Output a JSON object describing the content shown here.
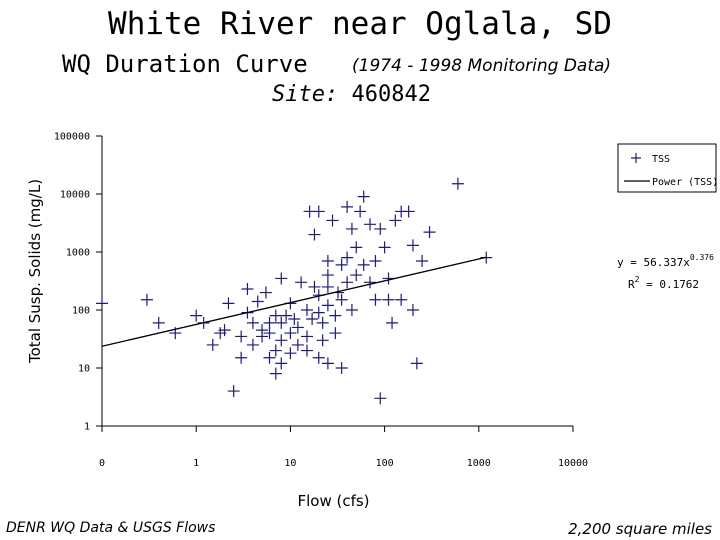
{
  "header": {
    "title": "White River near Oglala, SD",
    "subtitle": "WQ Duration Curve",
    "subtitle_note": "(1974 - 1998 Monitoring Data)",
    "site_label": "Site:",
    "site_id": "460842"
  },
  "footer": {
    "left": "DENR WQ Data & USGS Flows",
    "right": "2,200 square miles"
  },
  "colors": {
    "series": "#1a1a8c",
    "trendline": "#000000",
    "axis": "#000000"
  },
  "chart_data": {
    "type": "scatter",
    "xlabel": "Flow (cfs)",
    "ylabel": "Total Susp. Solids (mg/L)",
    "x_scale": "log",
    "y_scale": "log",
    "xlim": [
      0.1,
      10000
    ],
    "ylim": [
      1,
      100000
    ],
    "x_tick_labels": [
      "0",
      "1",
      "10",
      "100",
      "1000",
      "10000"
    ],
    "y_tick_labels": [
      "1",
      "10",
      "100",
      "1000",
      "10000",
      "100000"
    ],
    "grid": false,
    "legend": {
      "placement": "top-right",
      "entries": [
        "TSS",
        "Power (TSS)"
      ]
    },
    "series": [
      {
        "name": "TSS",
        "marker": "plus",
        "points": [
          [
            0.1,
            130
          ],
          [
            0.3,
            150
          ],
          [
            0.4,
            60
          ],
          [
            0.6,
            40
          ],
          [
            1.0,
            80
          ],
          [
            1.2,
            60
          ],
          [
            1.5,
            25
          ],
          [
            1.8,
            40
          ],
          [
            2.0,
            45
          ],
          [
            2.2,
            130
          ],
          [
            2.5,
            4
          ],
          [
            3.0,
            35
          ],
          [
            3.0,
            15
          ],
          [
            3.5,
            90
          ],
          [
            3.5,
            230
          ],
          [
            4.0,
            60
          ],
          [
            4.0,
            25
          ],
          [
            4.5,
            140
          ],
          [
            5.0,
            45
          ],
          [
            5.0,
            35
          ],
          [
            5.5,
            200
          ],
          [
            6.0,
            60
          ],
          [
            6.0,
            40
          ],
          [
            6.0,
            15
          ],
          [
            7.0,
            20
          ],
          [
            7.0,
            80
          ],
          [
            7.0,
            8
          ],
          [
            8.0,
            350
          ],
          [
            8.0,
            60
          ],
          [
            8.0,
            30
          ],
          [
            8.0,
            12
          ],
          [
            9.0,
            80
          ],
          [
            10.0,
            130
          ],
          [
            10.0,
            40
          ],
          [
            10.0,
            18
          ],
          [
            11.0,
            70
          ],
          [
            12.0,
            50
          ],
          [
            12.0,
            25
          ],
          [
            13.0,
            300
          ],
          [
            15.0,
            100
          ],
          [
            15.0,
            35
          ],
          [
            15.0,
            20
          ],
          [
            16.0,
            5000
          ],
          [
            17.0,
            70
          ],
          [
            18.0,
            2000
          ],
          [
            18.0,
            250
          ],
          [
            20.0,
            5000
          ],
          [
            20.0,
            180
          ],
          [
            20.0,
            90
          ],
          [
            20.0,
            15
          ],
          [
            22.0,
            60
          ],
          [
            22.0,
            30
          ],
          [
            25.0,
            700
          ],
          [
            25.0,
            400
          ],
          [
            25.0,
            250
          ],
          [
            25.0,
            120
          ],
          [
            25.0,
            12
          ],
          [
            28.0,
            3500
          ],
          [
            30.0,
            80
          ],
          [
            30.0,
            40
          ],
          [
            32.0,
            200
          ],
          [
            35.0,
            600
          ],
          [
            35.0,
            150
          ],
          [
            35.0,
            10
          ],
          [
            40.0,
            6000
          ],
          [
            40.0,
            800
          ],
          [
            40.0,
            300
          ],
          [
            45.0,
            2500
          ],
          [
            45.0,
            100
          ],
          [
            50.0,
            1200
          ],
          [
            50.0,
            400
          ],
          [
            55.0,
            5000
          ],
          [
            60.0,
            9000
          ],
          [
            60.0,
            600
          ],
          [
            70.0,
            3000
          ],
          [
            70.0,
            300
          ],
          [
            80.0,
            700
          ],
          [
            80.0,
            150
          ],
          [
            90.0,
            2500
          ],
          [
            90.0,
            3
          ],
          [
            100.0,
            1200
          ],
          [
            110.0,
            350
          ],
          [
            110.0,
            150
          ],
          [
            120.0,
            60
          ],
          [
            130.0,
            3500
          ],
          [
            150.0,
            5000
          ],
          [
            150.0,
            150
          ],
          [
            180.0,
            5000
          ],
          [
            200.0,
            1300
          ],
          [
            200.0,
            100
          ],
          [
            220.0,
            12
          ],
          [
            250.0,
            700
          ],
          [
            300.0,
            2200
          ],
          [
            600.0,
            15000
          ],
          [
            1200.0,
            800
          ]
        ]
      }
    ],
    "trendline": {
      "name": "Power (TSS)",
      "type": "power",
      "x_range": [
        0.1,
        1200
      ],
      "a": 56.337,
      "b": 0.376,
      "equation_text": "y = 56.337x",
      "equation_exponent": "0.376",
      "r2_prefix": "R",
      "r2_sup": "2",
      "r2_value": " = 0.1762"
    }
  }
}
